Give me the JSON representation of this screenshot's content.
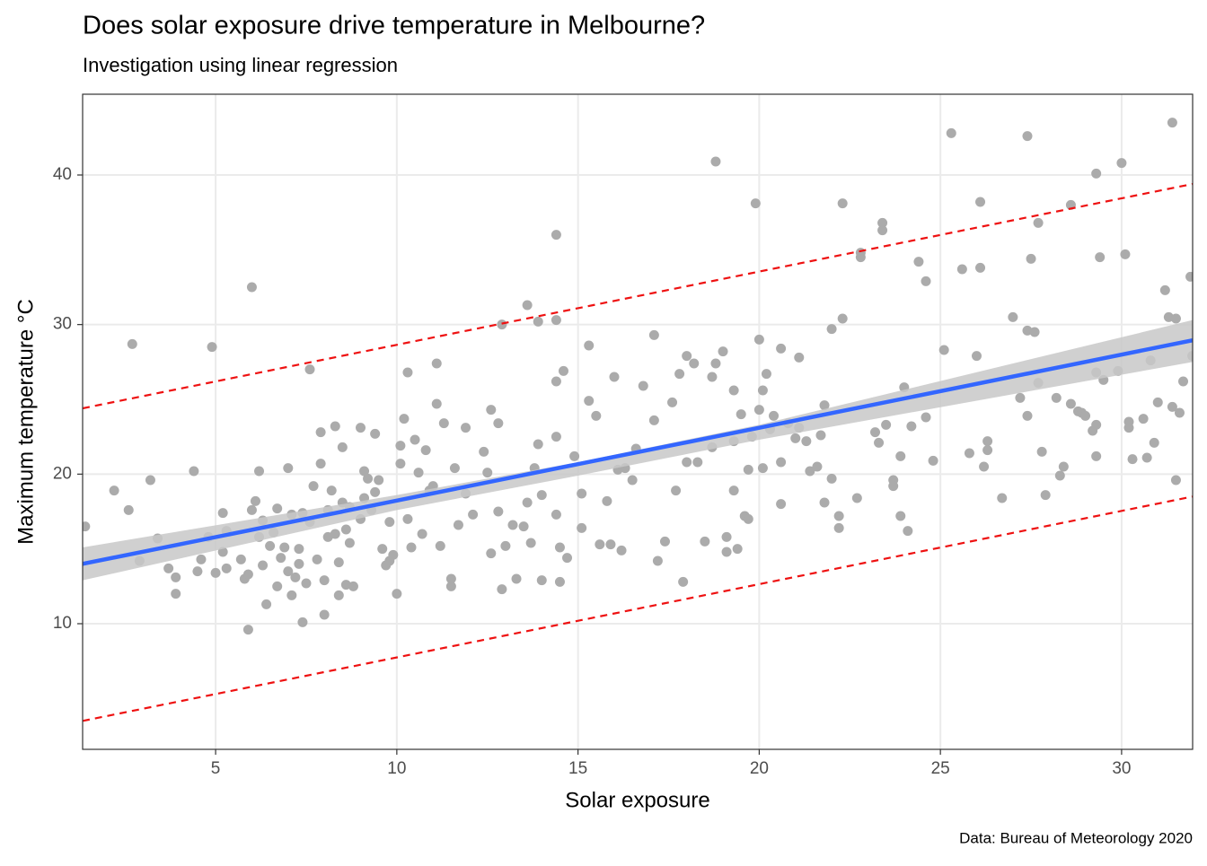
{
  "chart_data": {
    "type": "scatter",
    "title": "Does solar exposure drive temperature in Melbourne?",
    "subtitle": "Investigation using linear regression",
    "caption": "Data: Bureau of Meteorology 2020",
    "x_label": "Solar exposure",
    "y_label": "Maximum temperature °C",
    "xlim": [
      1.33,
      31.96
    ],
    "ylim": [
      1.6,
      45.4
    ],
    "xticks": [
      5,
      10,
      15,
      20,
      25,
      30
    ],
    "yticks": [
      10,
      20,
      30,
      40
    ],
    "grid": true,
    "points": {
      "color": "#ababab",
      "x": [
        1.4,
        2.2,
        2.6,
        2.7,
        2.9,
        3.2,
        3.4,
        3.7,
        3.9,
        3.9,
        4.4,
        4.5,
        4.6,
        4.8,
        4.9,
        5.0,
        5.2,
        5.2,
        5.3,
        5.3,
        5.7,
        5.8,
        5.9,
        5.9,
        6.0,
        6.0,
        6.1,
        6.2,
        6.2,
        6.3,
        6.3,
        6.4,
        6.5,
        6.6,
        6.7,
        6.7,
        6.8,
        6.9,
        7.0,
        7.0,
        7.1,
        7.1,
        7.2,
        7.3,
        7.3,
        7.4,
        7.4,
        7.5,
        7.6,
        7.6,
        7.7,
        7.8,
        7.9,
        7.9,
        8.0,
        8.0,
        8.1,
        8.1,
        8.2,
        8.3,
        8.3,
        8.4,
        8.4,
        8.5,
        8.5,
        8.6,
        8.6,
        8.7,
        8.7,
        8.8,
        9.0,
        9.0,
        9.1,
        9.1,
        9.2,
        9.3,
        9.4,
        9.4,
        9.5,
        9.6,
        9.7,
        9.8,
        9.8,
        9.9,
        10.0,
        10.1,
        10.1,
        10.2,
        10.3,
        10.3,
        10.4,
        10.5,
        10.6,
        10.7,
        10.8,
        10.9,
        11.0,
        11.1,
        11.1,
        11.2,
        11.3,
        11.5,
        11.5,
        11.6,
        11.7,
        11.9,
        11.9,
        12.1,
        12.4,
        12.5,
        12.6,
        12.6,
        12.8,
        12.8,
        12.9,
        12.9,
        13.0,
        13.2,
        13.3,
        13.5,
        13.6,
        13.6,
        13.7,
        13.8,
        13.9,
        13.9,
        14.0,
        14.0,
        14.4,
        14.4,
        14.4,
        14.4,
        14.4,
        14.5,
        14.5,
        14.6,
        14.7,
        14.9,
        15.1,
        15.1,
        15.3,
        15.3,
        15.5,
        15.6,
        15.8,
        15.9,
        16.0,
        16.1,
        16.2,
        16.3,
        16.5,
        16.6,
        16.8,
        17.1,
        17.1,
        17.2,
        17.4,
        17.6,
        17.7,
        17.8,
        17.9,
        18.0,
        18.0,
        18.2,
        18.3,
        18.5,
        18.7,
        18.7,
        18.8,
        18.8,
        19.0,
        19.1,
        19.1,
        19.3,
        19.3,
        19.3,
        19.4,
        19.5,
        19.6,
        19.7,
        19.7,
        19.8,
        19.9,
        20.0,
        20.0,
        20.1,
        20.1,
        20.2,
        20.3,
        20.4,
        20.6,
        20.6,
        20.6,
        20.8,
        21.0,
        21.1,
        21.1,
        21.3,
        21.4,
        21.6,
        21.7,
        21.8,
        21.8,
        22.0,
        22.0,
        22.2,
        22.2,
        22.3,
        22.3,
        22.7,
        22.8,
        22.8,
        23.2,
        23.3,
        23.4,
        23.4,
        23.5,
        23.7,
        23.7,
        23.9,
        23.9,
        24.0,
        24.1,
        24.2,
        24.4,
        24.6,
        24.6,
        24.8,
        25.1,
        25.3,
        25.6,
        25.8,
        26.0,
        26.1,
        26.1,
        26.2,
        26.3,
        26.3,
        26.7,
        27.0,
        27.2,
        27.4,
        27.4,
        27.4,
        27.5,
        27.6,
        27.7,
        27.7,
        27.8,
        27.9,
        28.2,
        28.3,
        28.4,
        28.6,
        28.6,
        28.8,
        28.9,
        29.0,
        29.2,
        29.3,
        29.3,
        29.3,
        29.3,
        29.4,
        29.5,
        29.9,
        30.0,
        30.1,
        30.2,
        30.2,
        30.3,
        30.6,
        30.7,
        30.8,
        30.9,
        31.0,
        31.2,
        31.3,
        31.4,
        31.4,
        31.5,
        31.5,
        31.6,
        31.7,
        31.9,
        31.95
      ],
      "y": [
        16.5,
        18.9,
        17.6,
        28.7,
        14.2,
        19.6,
        15.7,
        13.7,
        13.1,
        12.0,
        20.2,
        13.5,
        14.3,
        15.8,
        28.5,
        13.4,
        17.4,
        14.8,
        13.7,
        16.2,
        14.3,
        13.0,
        13.3,
        9.6,
        32.5,
        17.6,
        18.2,
        20.2,
        15.8,
        13.9,
        16.9,
        11.3,
        15.2,
        16.1,
        17.7,
        12.5,
        14.4,
        15.1,
        20.4,
        13.5,
        17.3,
        11.9,
        13.1,
        15.0,
        14.0,
        17.4,
        10.1,
        12.7,
        27.0,
        16.8,
        19.2,
        14.3,
        22.8,
        20.7,
        12.9,
        10.6,
        17.6,
        15.8,
        18.9,
        23.2,
        16.0,
        14.1,
        11.9,
        21.8,
        18.1,
        16.3,
        12.6,
        17.8,
        15.4,
        12.5,
        17.0,
        23.1,
        20.2,
        18.4,
        19.7,
        17.6,
        22.7,
        18.8,
        19.6,
        15.0,
        13.9,
        16.8,
        14.2,
        14.6,
        12.0,
        21.9,
        20.7,
        23.7,
        26.8,
        17.0,
        15.1,
        22.3,
        20.1,
        16.0,
        21.6,
        18.9,
        19.2,
        27.4,
        24.7,
        15.2,
        23.4,
        12.5,
        13.0,
        20.4,
        16.6,
        23.1,
        18.7,
        17.3,
        21.5,
        20.1,
        24.3,
        14.7,
        23.4,
        17.5,
        30.0,
        12.3,
        15.2,
        16.6,
        13.0,
        16.5,
        31.3,
        18.1,
        15.4,
        20.4,
        30.2,
        22.0,
        18.6,
        12.9,
        36.0,
        30.3,
        26.2,
        22.5,
        17.3,
        15.1,
        12.8,
        26.9,
        14.4,
        21.2,
        18.7,
        16.4,
        28.6,
        24.9,
        23.9,
        15.3,
        18.2,
        15.3,
        26.5,
        20.3,
        14.9,
        20.4,
        19.6,
        21.7,
        25.9,
        23.6,
        29.3,
        14.2,
        15.5,
        24.8,
        18.9,
        26.7,
        12.8,
        27.9,
        20.8,
        27.4,
        20.8,
        15.5,
        26.5,
        21.8,
        27.4,
        40.9,
        28.2,
        15.8,
        14.8,
        25.6,
        22.2,
        18.9,
        15.0,
        24.0,
        17.2,
        17.0,
        20.3,
        22.5,
        38.1,
        29.0,
        24.3,
        20.4,
        25.6,
        26.7,
        23.0,
        23.9,
        28.4,
        20.8,
        18.0,
        23.4,
        22.4,
        23.1,
        27.8,
        22.2,
        20.2,
        20.5,
        22.6,
        24.6,
        18.1,
        19.7,
        29.7,
        17.2,
        16.4,
        30.4,
        38.1,
        18.4,
        34.5,
        34.8,
        22.8,
        22.1,
        36.8,
        36.3,
        23.3,
        19.6,
        19.2,
        21.2,
        17.2,
        25.8,
        16.2,
        23.2,
        34.2,
        32.9,
        23.8,
        20.9,
        28.3,
        42.8,
        33.7,
        21.4,
        27.9,
        38.2,
        33.8,
        20.5,
        22.2,
        21.6,
        18.4,
        30.5,
        25.1,
        42.6,
        29.6,
        23.9,
        34.4,
        29.5,
        36.8,
        26.1,
        21.5,
        18.6,
        25.1,
        19.9,
        20.5,
        38.0,
        24.7,
        24.2,
        24.1,
        23.9,
        22.9,
        40.1,
        26.8,
        23.3,
        21.2,
        34.5,
        26.3,
        26.9,
        40.8,
        34.7,
        23.5,
        23.1,
        21.0,
        23.7,
        21.1,
        27.6,
        22.1,
        24.8,
        32.3,
        30.5,
        43.5,
        24.5,
        30.4,
        19.6,
        24.1,
        26.2,
        33.2,
        27.9
      ]
    },
    "band": {
      "color": "#c8c8c8",
      "x": [
        1.33,
        10,
        15,
        20,
        31.96
      ],
      "lower": [
        12.9,
        17.6,
        19.9,
        22.3,
        27.5
      ],
      "upper": [
        15.1,
        18.6,
        20.8,
        23.3,
        30.3
      ]
    },
    "fit": {
      "color": "#3366ff",
      "x": [
        1.33,
        10,
        15,
        20,
        31.96
      ],
      "y": [
        14.0,
        18.23,
        20.67,
        23.1,
        28.95
      ]
    },
    "prediction_interval": {
      "color": "#ee1111",
      "x": [
        1.33,
        31.96
      ],
      "lower": [
        3.5,
        18.5
      ],
      "upper": [
        24.4,
        39.4
      ]
    }
  }
}
